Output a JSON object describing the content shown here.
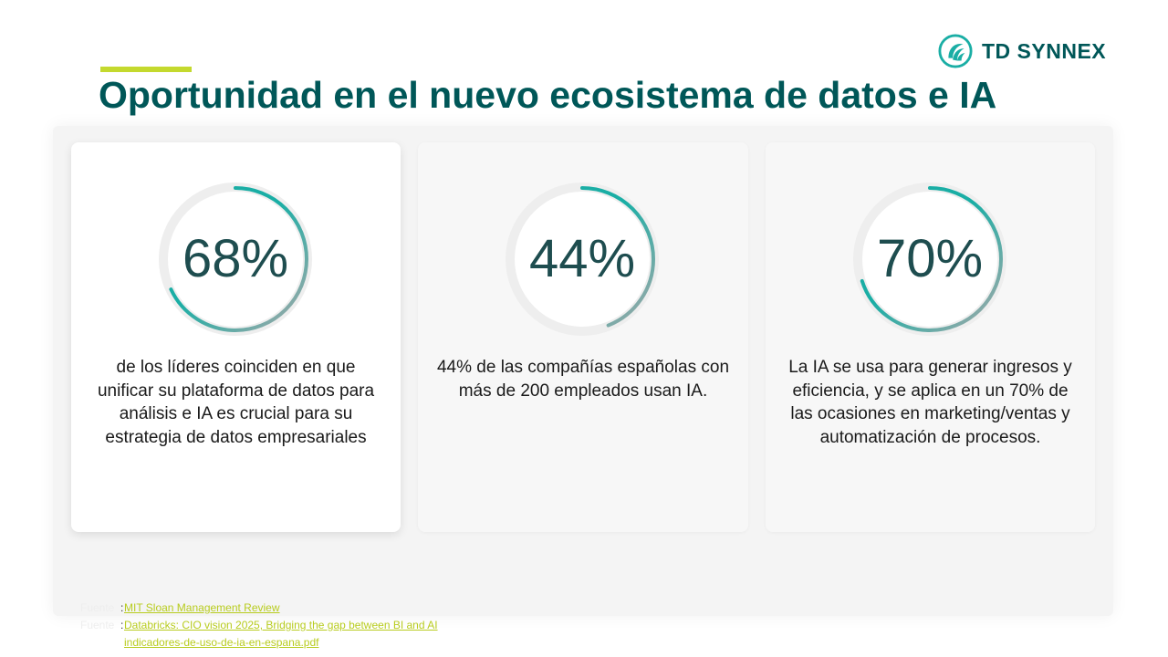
{
  "brand": {
    "name": "TD SYNNEX",
    "accent_color": "#c4d92e",
    "primary_color": "#005758",
    "ring_color": "#1aaea5"
  },
  "title": "Oportunidad en el nuevo ecosistema de datos e IA",
  "cards": [
    {
      "value_label": "68%",
      "percent": 68,
      "description": "de los líderes coinciden en que unificar su plataforma de datos para análisis e IA es crucial para su estrategia de datos empresariales"
    },
    {
      "value_label": "44%",
      "percent": 44,
      "description": "44% de las compañías españolas con más de 200 empleados usan IA."
    },
    {
      "value_label": "70%",
      "percent": 70,
      "description": "La IA se usa para generar ingresos y eficiencia, y se aplica en un 70% de las ocasiones en marketing/ventas y automatización de procesos."
    }
  ],
  "sources": [
    {
      "label": "Fuente",
      "link": "MIT Sloan Management Review"
    },
    {
      "label": "Fuente",
      "link": "Databricks: CIO vision 2025, Bridging the gap between BI and AI"
    },
    {
      "label": "",
      "link": "indicadores-de-uso-de-ia-en-espana.pdf"
    }
  ]
}
